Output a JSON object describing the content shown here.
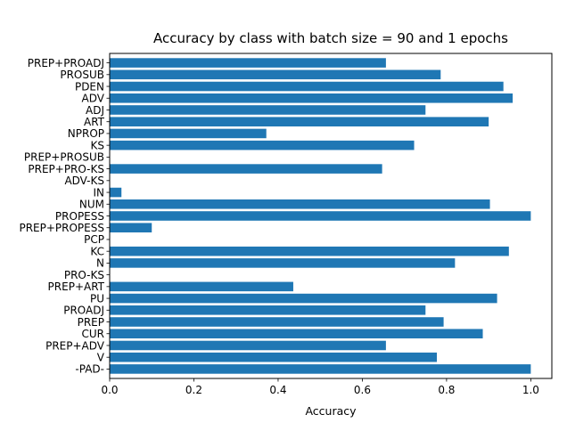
{
  "chart_data": {
    "type": "bar",
    "orientation": "horizontal",
    "title": "Accuracy by class with batch size = 90 and 1 epochs",
    "xlabel": "Accuracy",
    "ylabel": "",
    "xlim": [
      0,
      1.05
    ],
    "xticks": [
      "0.0",
      "0.2",
      "0.4",
      "0.6",
      "0.8",
      "1.0"
    ],
    "xtick_values": [
      0,
      0.2,
      0.4,
      0.6,
      0.8,
      1.0
    ],
    "grid": false,
    "bar_color": "#1f77b4",
    "categories": [
      "-PAD-",
      "V",
      "PREP+ADV",
      "CUR",
      "PREP",
      "PROADJ",
      "PU",
      "PREP+ART",
      "PRO-KS",
      "N",
      "KC",
      "PCP",
      "PREP+PROPESS",
      "PROPESS",
      "NUM",
      "IN",
      "ADV-KS",
      "PREP+PRO-KS",
      "PREP+PROSUB",
      "KS",
      "NPROP",
      "ART",
      "ADJ",
      "ADV",
      "PDEN",
      "PROSUB",
      "PREP+PROADJ"
    ],
    "values": [
      1.0,
      0.777,
      0.656,
      0.886,
      0.793,
      0.75,
      0.92,
      0.436,
      0.0,
      0.82,
      0.948,
      0.0,
      0.1,
      1.0,
      0.903,
      0.028,
      0.0,
      0.647,
      0.0,
      0.723,
      0.372,
      0.9,
      0.75,
      0.957,
      0.935,
      0.786,
      0.656
    ]
  }
}
